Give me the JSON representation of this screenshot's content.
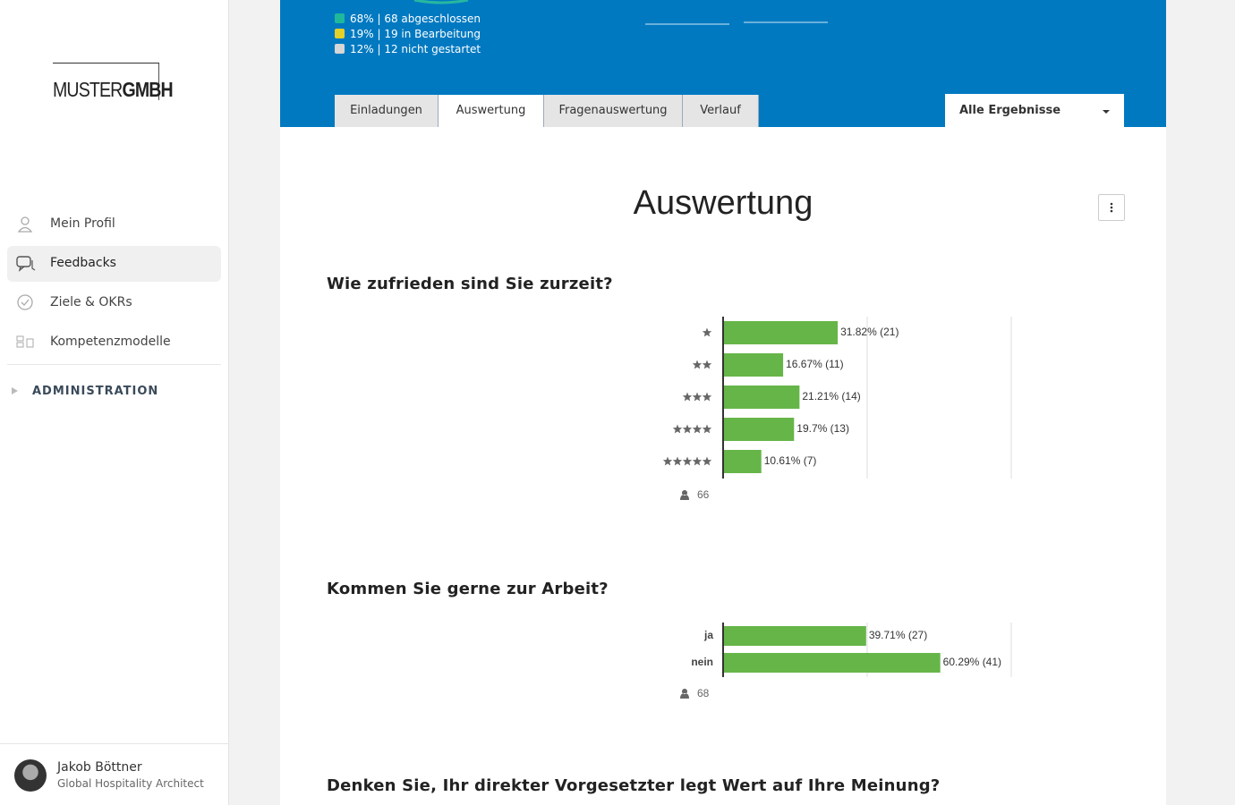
{
  "sidebar": {
    "logo": {
      "left": "MUSTER",
      "right": "GMBH"
    },
    "nav": [
      {
        "label": "Mein Profil",
        "active": false
      },
      {
        "label": "Feedbacks",
        "active": true
      },
      {
        "label": "Ziele & OKRs",
        "active": false
      },
      {
        "label": "Kompetenzmodelle",
        "active": false
      }
    ],
    "section": "ADMINISTRATION",
    "user": {
      "name": "Jakob Böttner",
      "role": "Global Hospitality Architect"
    }
  },
  "header": {
    "legend": [
      {
        "label": "68% | 68 abgeschlossen",
        "color": "#1fb89a"
      },
      {
        "label": "19% | 19 in Bearbeitung",
        "color": "#e3d12a"
      },
      {
        "label": "12% | 12 nicht gestartet",
        "color": "#d6d6d6"
      }
    ],
    "tabs": [
      {
        "label": "Einladungen",
        "active": false
      },
      {
        "label": "Auswertung",
        "active": true
      },
      {
        "label": "Fragenauswertung",
        "active": false
      },
      {
        "label": "Verlauf",
        "active": false
      }
    ],
    "filter": "Alle Ergebnisse"
  },
  "page_title": "Auswertung",
  "questions": [
    {
      "title": "Wie zufrieden sind Sie zurzeit?",
      "chart_data": {
        "type": "bar",
        "orientation": "horizontal",
        "star_counts": [
          1,
          2,
          3,
          4,
          5
        ],
        "values": [
          31.82,
          16.67,
          21.21,
          19.7,
          10.61
        ],
        "value_labels": [
          "31.82% (21)",
          "16.67% (11)",
          "21.21% (14)",
          "19.7% (13)",
          "10.61% (7)"
        ],
        "color": "#66b548",
        "xlim": [
          0,
          80
        ],
        "xticks": [
          0,
          40,
          80
        ],
        "grid": true,
        "respondents": 66
      }
    },
    {
      "title": "Kommen Sie gerne zur Arbeit?",
      "chart_data": {
        "type": "bar",
        "orientation": "horizontal",
        "categories": [
          "ja",
          "nein"
        ],
        "values": [
          39.71,
          60.29
        ],
        "value_labels": [
          "39.71% (27)",
          "60.29% (41)"
        ],
        "color": "#66b548",
        "xlim": [
          0,
          80
        ],
        "xticks": [
          0,
          40,
          80
        ],
        "grid": true,
        "respondents": 68
      }
    },
    {
      "title": "Denken Sie, Ihr direkter Vorgesetzter legt Wert auf Ihre Meinung?"
    }
  ]
}
